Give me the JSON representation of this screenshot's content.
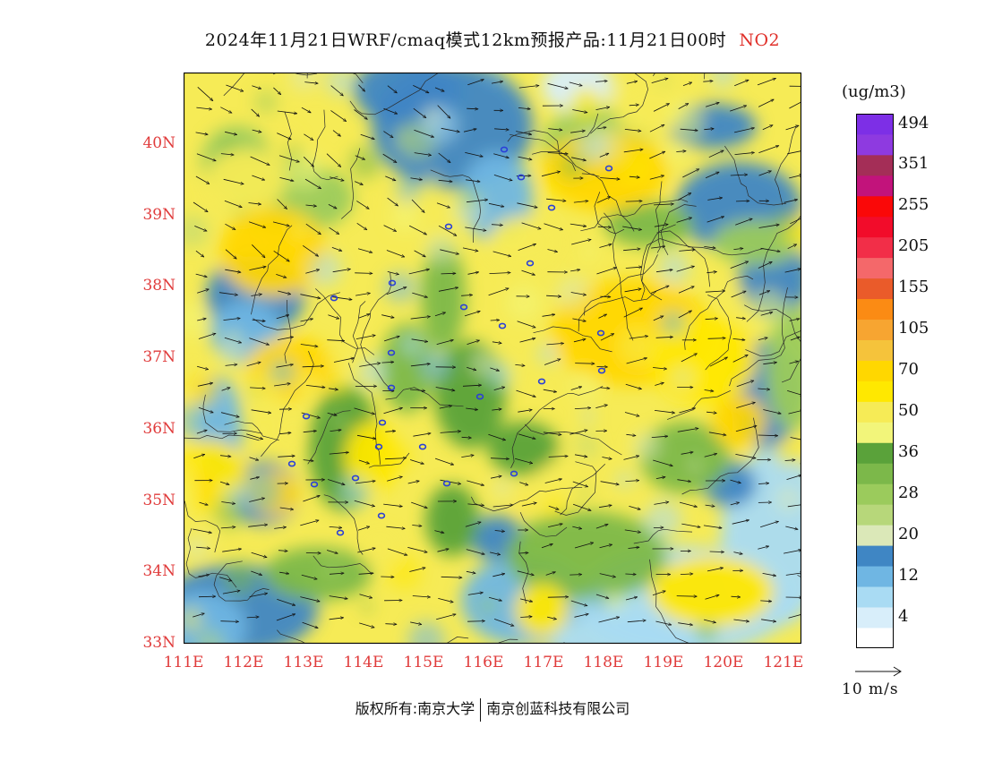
{
  "title": {
    "text": "2024年11月21日WRF/cmaq模式12km预报产品:11月21日00时",
    "pollutant": "NO2"
  },
  "map": {
    "lat_labels": [
      "40N",
      "39N",
      "38N",
      "37N",
      "36N",
      "35N",
      "34N",
      "33N"
    ],
    "lon_labels": [
      "111E",
      "112E",
      "113E",
      "114E",
      "115E",
      "116E",
      "117E",
      "118E",
      "119E",
      "120E",
      "121E"
    ],
    "lat_range": [
      33,
      41
    ],
    "lon_range": [
      111,
      121.3
    ],
    "wind_direction": "predominantly westerly to west-northwesterly",
    "city_marker_color": "#2a3fd8"
  },
  "legend": {
    "unit": "(ug/m3)",
    "bins": [
      {
        "color": "#ffffff"
      },
      {
        "color": "#d8eefa"
      },
      {
        "color": "#a9dbf3"
      },
      {
        "color": "#6fb6e3"
      },
      {
        "color": "#3f86c4"
      },
      {
        "color": "#dbe8b8"
      },
      {
        "color": "#b7d77a"
      },
      {
        "color": "#9bcb5c"
      },
      {
        "color": "#7cb84a"
      },
      {
        "color": "#5aa23a"
      },
      {
        "color": "#f2f57a"
      },
      {
        "color": "#f6eb56"
      },
      {
        "color": "#ffe800"
      },
      {
        "color": "#ffd700"
      },
      {
        "color": "#f5c33b"
      },
      {
        "color": "#f7a531"
      },
      {
        "color": "#fb8b14"
      },
      {
        "color": "#ea5b2a"
      },
      {
        "color": "#f4686a"
      },
      {
        "color": "#f22e48"
      },
      {
        "color": "#f20c2a"
      },
      {
        "color": "#fa0808"
      },
      {
        "color": "#c2137b"
      },
      {
        "color": "#a42e57"
      },
      {
        "color": "#8e3ae0"
      },
      {
        "color": "#7d2fe6"
      }
    ],
    "labels": [
      "4",
      "12",
      "20",
      "28",
      "36",
      "50",
      "70",
      "105",
      "155",
      "205",
      "255",
      "351",
      "494"
    ]
  },
  "vector_reference": "10 m/s",
  "footer": {
    "left": "版权所有:南京大学",
    "right": "南京创蓝科技有限公司"
  }
}
